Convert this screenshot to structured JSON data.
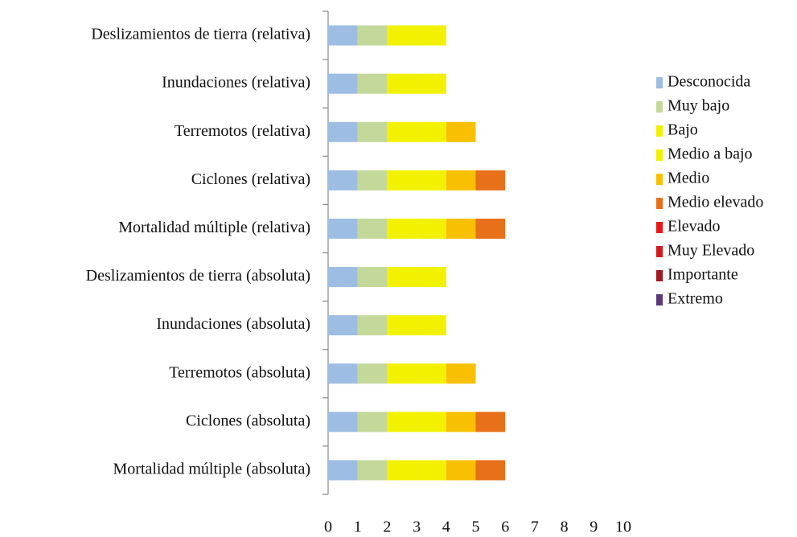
{
  "chart_data": {
    "type": "stacked_bar_horizontal",
    "categories": [
      "Deslizamientos de tierra (relativa)",
      "Inundaciones (relativa)",
      "Terremotos (relativa)",
      "Ciclones (relativa)",
      "Mortalidad múltiple (relativa)",
      "Deslizamientos de tierra (absoluta)",
      "Inundaciones (absoluta)",
      "Terremotos (absoluta)",
      "Ciclones (absoluta)",
      "Mortalidad múltiple (absoluta)"
    ],
    "series": [
      {
        "name": "Desconocida",
        "color": "#9dbde3",
        "values": [
          1,
          1,
          1,
          1,
          1,
          1,
          1,
          1,
          1,
          1
        ]
      },
      {
        "name": "Muy bajo",
        "color": "#c4d89a",
        "values": [
          1,
          1,
          1,
          1,
          1,
          1,
          1,
          1,
          1,
          1
        ]
      },
      {
        "name": "Bajo",
        "color": "#f2f200",
        "values": [
          1,
          1,
          1,
          1,
          1,
          1,
          1,
          1,
          1,
          1
        ]
      },
      {
        "name": "Medio a bajo",
        "color": "#f2f200",
        "values": [
          1,
          1,
          1,
          1,
          1,
          1,
          1,
          1,
          1,
          1
        ]
      },
      {
        "name": "Medio",
        "color": "#f8c000",
        "values": [
          0,
          0,
          1,
          1,
          1,
          0,
          0,
          1,
          1,
          1
        ]
      },
      {
        "name": "Medio elevado",
        "color": "#e8701a",
        "values": [
          0,
          0,
          0,
          1,
          1,
          0,
          0,
          0,
          1,
          1
        ]
      },
      {
        "name": "Elevado",
        "color": "#e81818",
        "values": [
          0,
          0,
          0,
          0,
          0,
          0,
          0,
          0,
          0,
          0
        ]
      },
      {
        "name": "Muy Elevado",
        "color": "#d01c20",
        "values": [
          0,
          0,
          0,
          0,
          0,
          0,
          0,
          0,
          0,
          0
        ]
      },
      {
        "name": "Importante",
        "color": "#a01820",
        "values": [
          0,
          0,
          0,
          0,
          0,
          0,
          0,
          0,
          0,
          0
        ]
      },
      {
        "name": "Extremo",
        "color": "#5a3a7a",
        "values": [
          0,
          0,
          0,
          0,
          0,
          0,
          0,
          0,
          0,
          0
        ]
      }
    ],
    "xlim": [
      0,
      10
    ],
    "xticks": [
      0,
      1,
      2,
      3,
      4,
      5,
      6,
      7,
      8,
      9,
      10
    ],
    "legend": "right"
  }
}
